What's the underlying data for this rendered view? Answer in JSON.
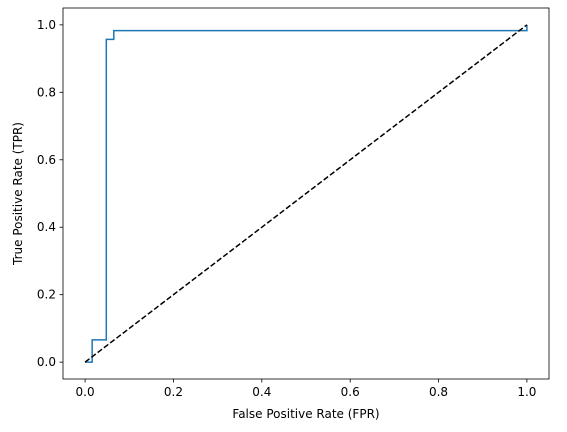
{
  "chart_data": {
    "type": "line",
    "xlabel": "False Positive Rate (FPR)",
    "ylabel": "True Positive Rate (TPR)",
    "xlim": [
      -0.05,
      1.05
    ],
    "ylim": [
      -0.05,
      1.05
    ],
    "xticks": [
      "0.0",
      "0.2",
      "0.4",
      "0.6",
      "0.8",
      "1.0"
    ],
    "yticks": [
      "0.0",
      "0.2",
      "0.4",
      "0.6",
      "0.8",
      "1.0"
    ],
    "grid": false,
    "series": [
      {
        "style": "step",
        "color": "#1f77b4",
        "points": [
          [
            0.0,
            0.0
          ],
          [
            0.016,
            0.0
          ],
          [
            0.016,
            0.066
          ],
          [
            0.048,
            0.066
          ],
          [
            0.048,
            0.957
          ],
          [
            0.065,
            0.957
          ],
          [
            0.065,
            0.983
          ],
          [
            1.0,
            0.983
          ],
          [
            1.0,
            1.0
          ]
        ]
      },
      {
        "style": "dashed",
        "color": "#000000",
        "points": [
          [
            0.0,
            0.0
          ],
          [
            1.0,
            1.0
          ]
        ]
      }
    ]
  }
}
